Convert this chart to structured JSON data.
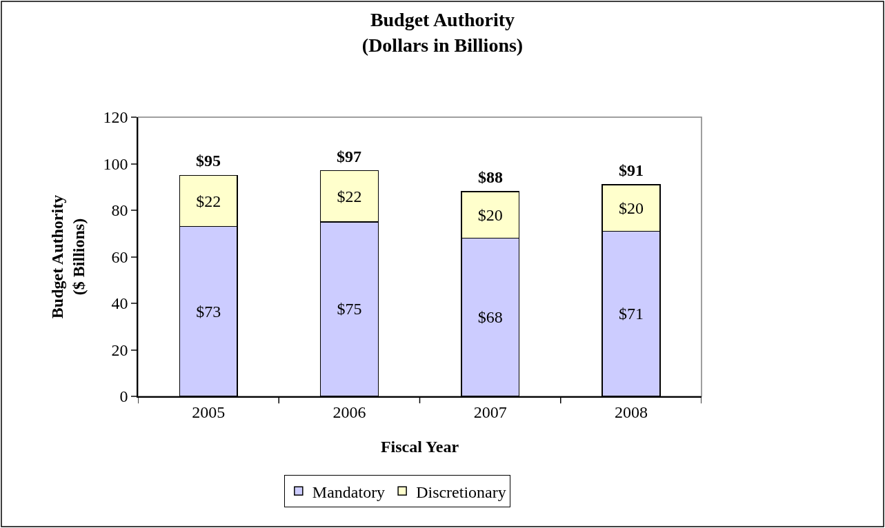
{
  "chart_data": {
    "type": "bar",
    "title": "Budget Authority\n(Dollars in Billions)",
    "xlabel": "Fiscal Year",
    "ylabel": "Budget Authority\n($ Billions)",
    "categories": [
      "2005",
      "2006",
      "2007",
      "2008"
    ],
    "stacked": true,
    "series": [
      {
        "name": "Mandatory",
        "color": "#ccccff",
        "values": [
          73,
          75,
          68,
          71
        ],
        "value_labels": [
          "$73",
          "$75",
          "$68",
          "$71"
        ]
      },
      {
        "name": "Discretionary",
        "color": "#ffffcc",
        "values": [
          22,
          22,
          20,
          20
        ],
        "value_labels": [
          "$22",
          "$22",
          "$20",
          "$20"
        ]
      }
    ],
    "totals": [
      "$95",
      "$97",
      "$88",
      "$91"
    ],
    "ylim": [
      0,
      120
    ],
    "yticks": [
      0,
      20,
      40,
      60,
      80,
      100,
      120
    ],
    "grid": false,
    "legend": "bottom"
  }
}
